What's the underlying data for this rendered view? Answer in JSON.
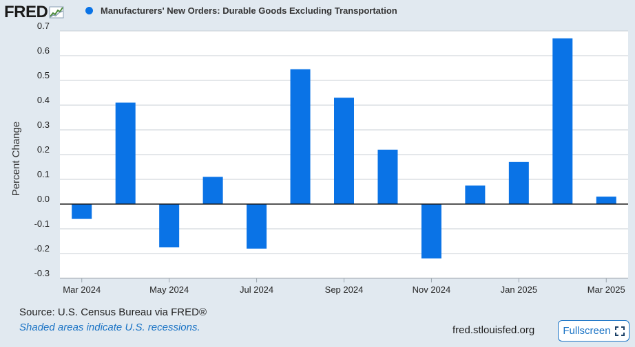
{
  "header": {
    "logo_text": "FRED",
    "legend_label": "Manufacturers' New Orders: Durable Goods Excluding Transportation"
  },
  "colors": {
    "series": "#0a73e6",
    "background": "#e1e9f0",
    "plot_background": "#ffffff",
    "grid": "#c8cfd6",
    "link": "#1a73c5"
  },
  "chart_data": {
    "type": "bar",
    "categories": [
      "Mar 2024",
      "Apr 2024",
      "May 2024",
      "Jun 2024",
      "Jul 2024",
      "Aug 2024",
      "Sep 2024",
      "Oct 2024",
      "Nov 2024",
      "Dec 2024",
      "Jan 2025",
      "Feb 2025",
      "Mar 2025"
    ],
    "series": [
      {
        "name": "Manufacturers' New Orders: Durable Goods Excluding Transportation",
        "values": [
          -0.06,
          0.41,
          -0.175,
          0.11,
          -0.18,
          0.545,
          0.43,
          0.22,
          -0.22,
          0.075,
          0.17,
          0.67,
          0.03
        ]
      }
    ],
    "x_tick_labels": [
      "Mar 2024",
      "May 2024",
      "Jul 2024",
      "Sep 2024",
      "Nov 2024",
      "Jan 2025",
      "Mar 2025"
    ],
    "y_ticks": [
      "0.7",
      "0.6",
      "0.5",
      "0.4",
      "0.3",
      "0.2",
      "0.1",
      "0.0",
      "-0.1",
      "-0.2",
      "-0.3"
    ],
    "ylabel": "Percent Change",
    "ylim": [
      -0.3,
      0.7
    ],
    "grid": true,
    "legend": "top-left"
  },
  "footer": {
    "source": "U.S. Census Bureau via FRED®",
    "source_prefix": "Source: ",
    "recession_note": "Shaded areas indicate U.S. recessions.",
    "site": "fred.stlouisfed.org",
    "fullscreen_label": "Fullscreen"
  }
}
